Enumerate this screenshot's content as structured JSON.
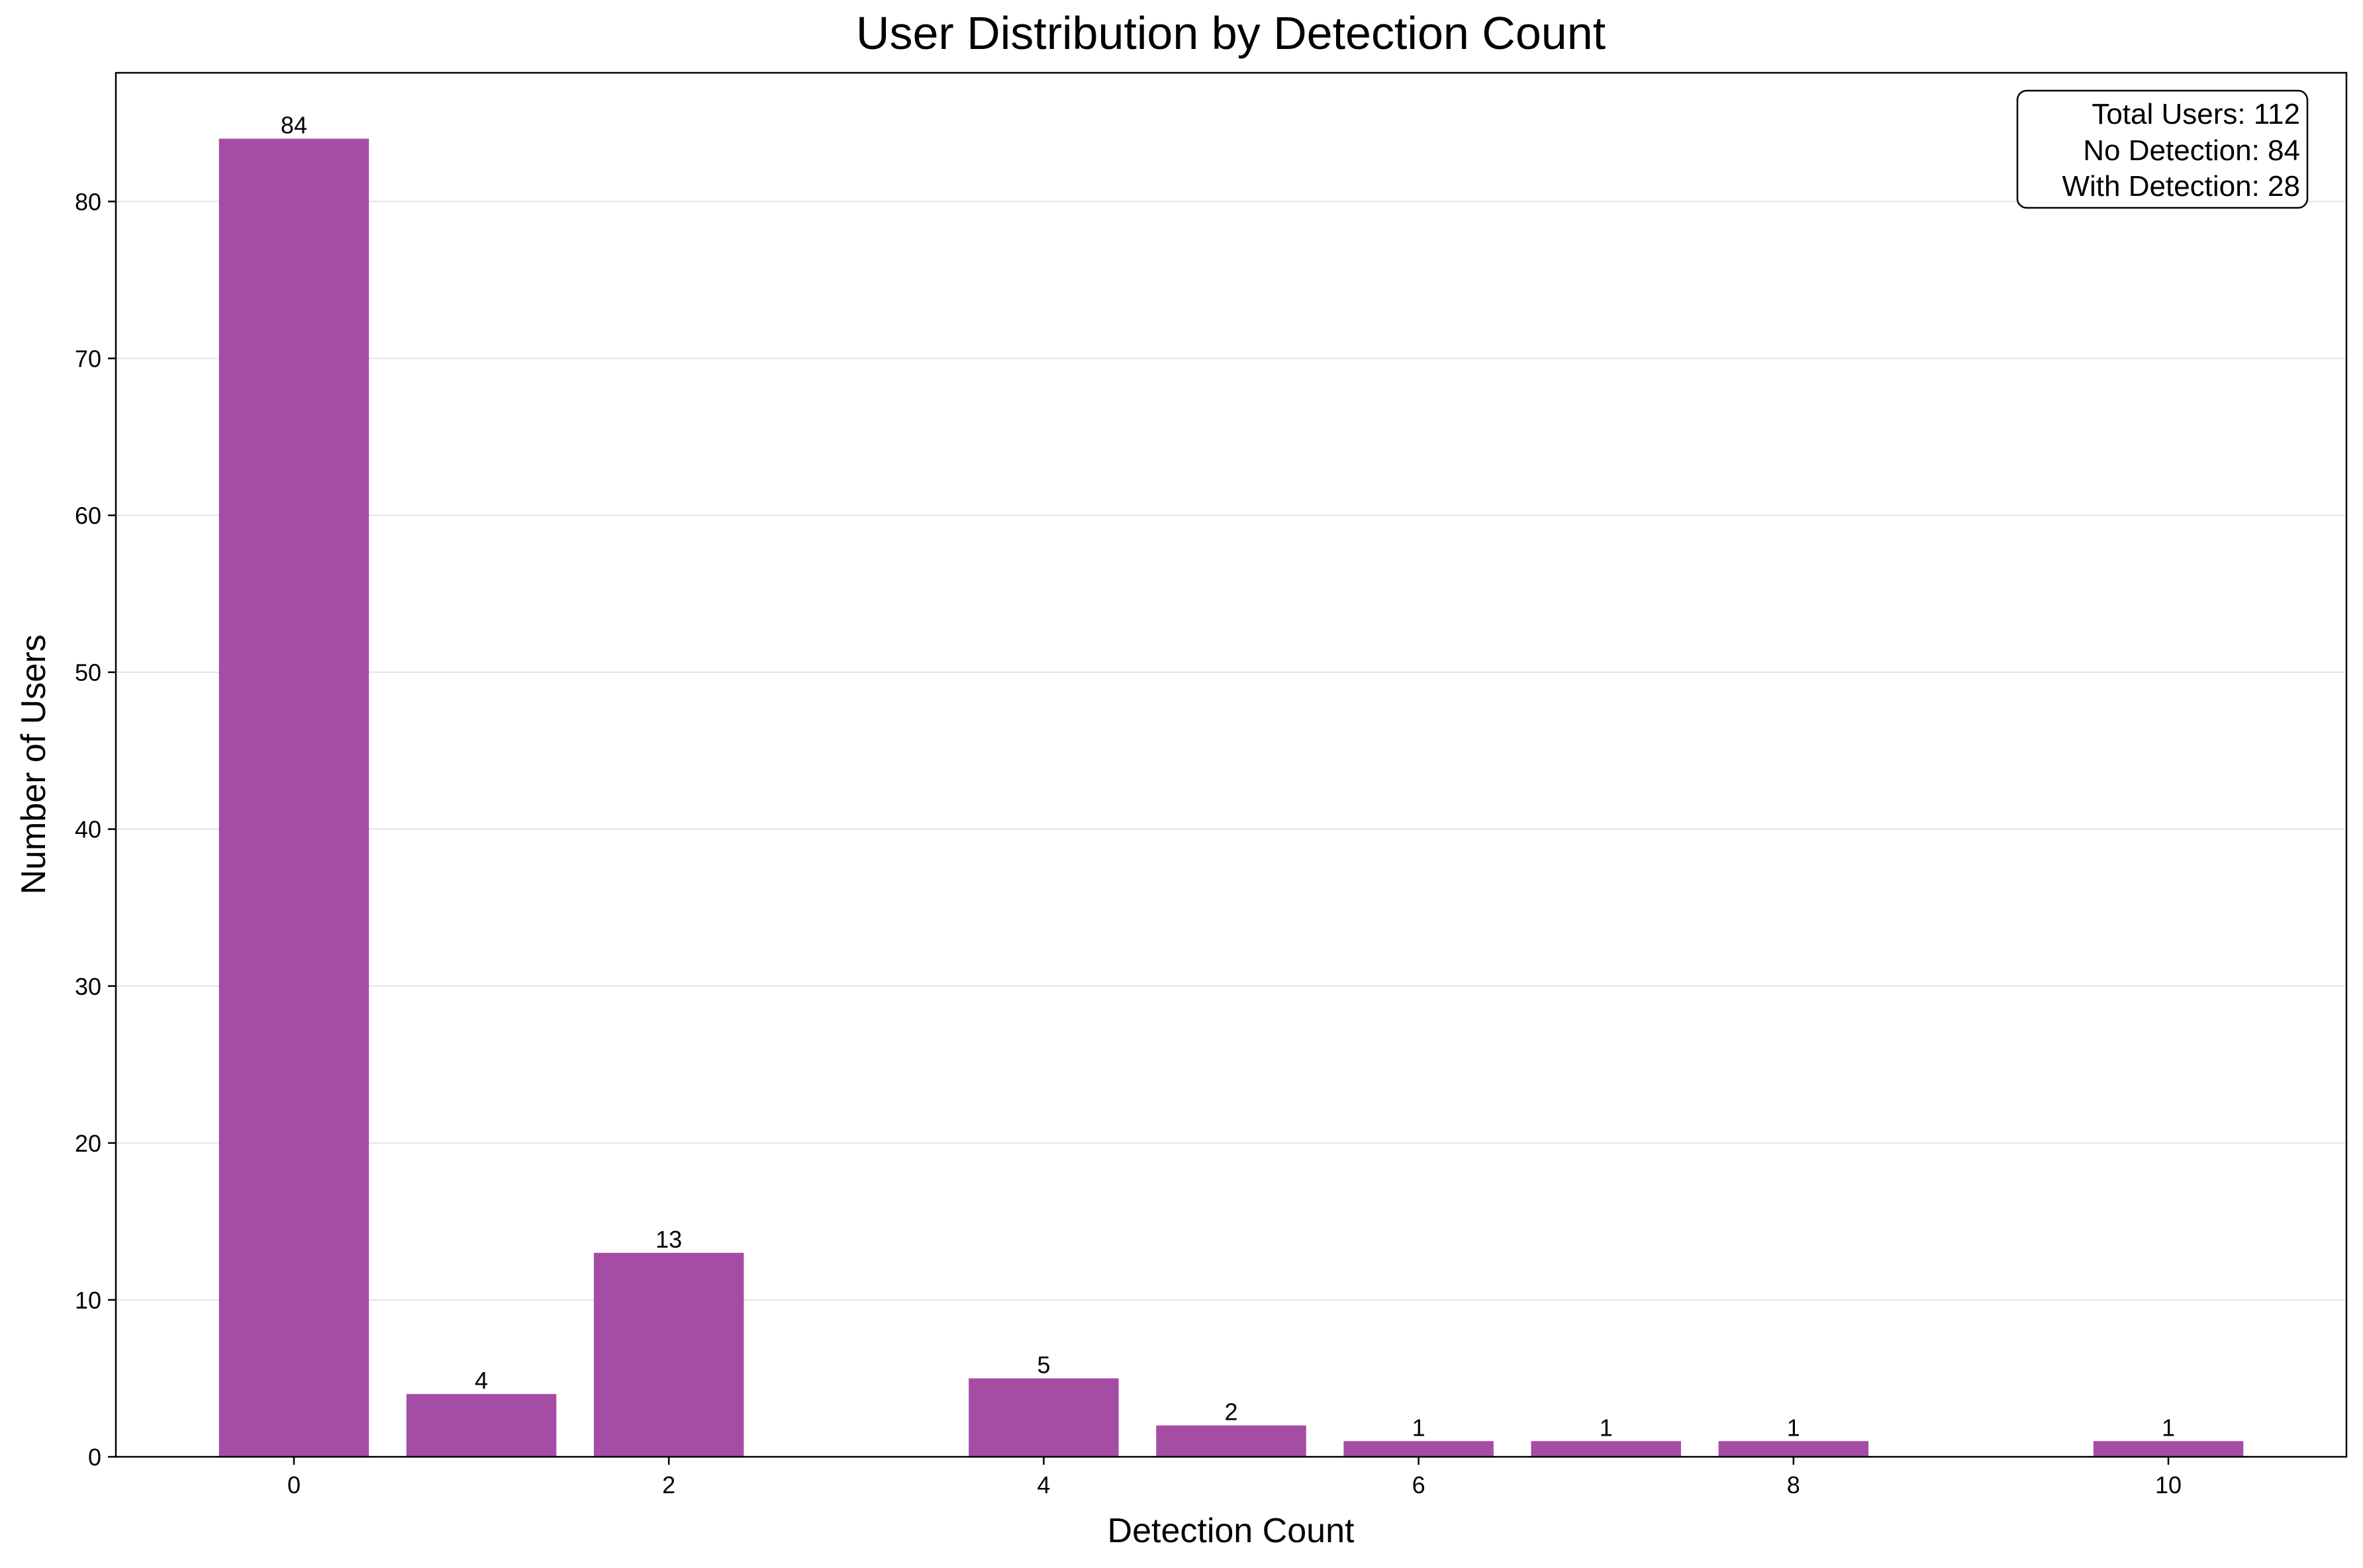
{
  "chart_data": {
    "type": "bar",
    "title": "User Distribution by Detection Count",
    "xlabel": "Detection Count",
    "ylabel": "Number of Users",
    "x": [
      0,
      1,
      2,
      4,
      5,
      6,
      7,
      8,
      10
    ],
    "values": [
      84,
      4,
      13,
      5,
      2,
      1,
      1,
      1,
      1
    ],
    "xlim": [
      -0.95,
      10.95
    ],
    "ylim": [
      0,
      88.2
    ],
    "xticks": [
      0,
      2,
      4,
      6,
      8,
      10
    ],
    "yticks": [
      0,
      10,
      20,
      30,
      40,
      50,
      60,
      70,
      80
    ],
    "grid": "y",
    "bar_color": "#a54ca5",
    "grid_color": "#e3e3e3",
    "annotation": {
      "placement": "top-right",
      "lines": [
        "Total Users: 112",
        "No Detection: 84",
        "With Detection: 28"
      ]
    }
  }
}
